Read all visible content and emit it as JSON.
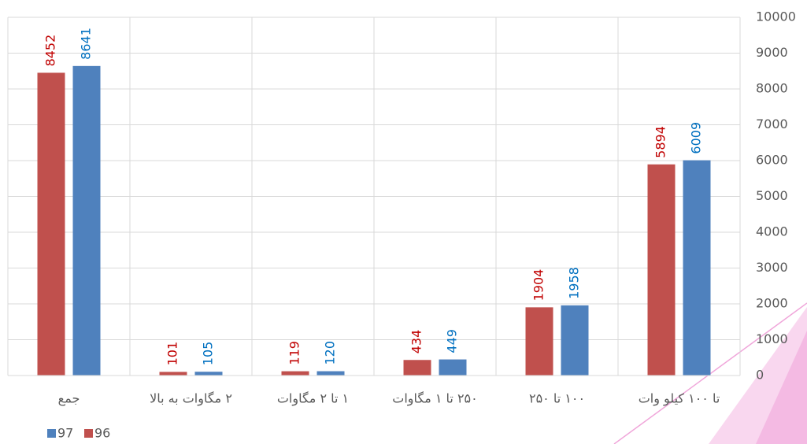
{
  "chart_data": {
    "type": "bar",
    "categories": [
      "تا ۱۰۰ کیلو وات",
      "۱۰۰ تا ۲۵۰",
      "۲۵۰ تا ۱ مگاوات",
      "۱ تا ۲ مگاوات",
      "۲ مگاوات به بالا",
      "جمع"
    ],
    "series": [
      {
        "name": "96",
        "color": "#c0504d",
        "label_color": "#c00000",
        "values": [
          5894,
          1904,
          434,
          119,
          101,
          8452
        ]
      },
      {
        "name": "97",
        "color": "#4f81bd",
        "label_color": "#0070c0",
        "values": [
          6009,
          1958,
          449,
          120,
          105,
          8641
        ]
      }
    ],
    "ylim": [
      0,
      10000
    ],
    "yticks": [
      0,
      1000,
      2000,
      3000,
      4000,
      5000,
      6000,
      7000,
      8000,
      9000,
      10000
    ],
    "grid": true,
    "y_axis_side": "right",
    "category_direction": "right-to-left",
    "legend": "bottom-left"
  }
}
